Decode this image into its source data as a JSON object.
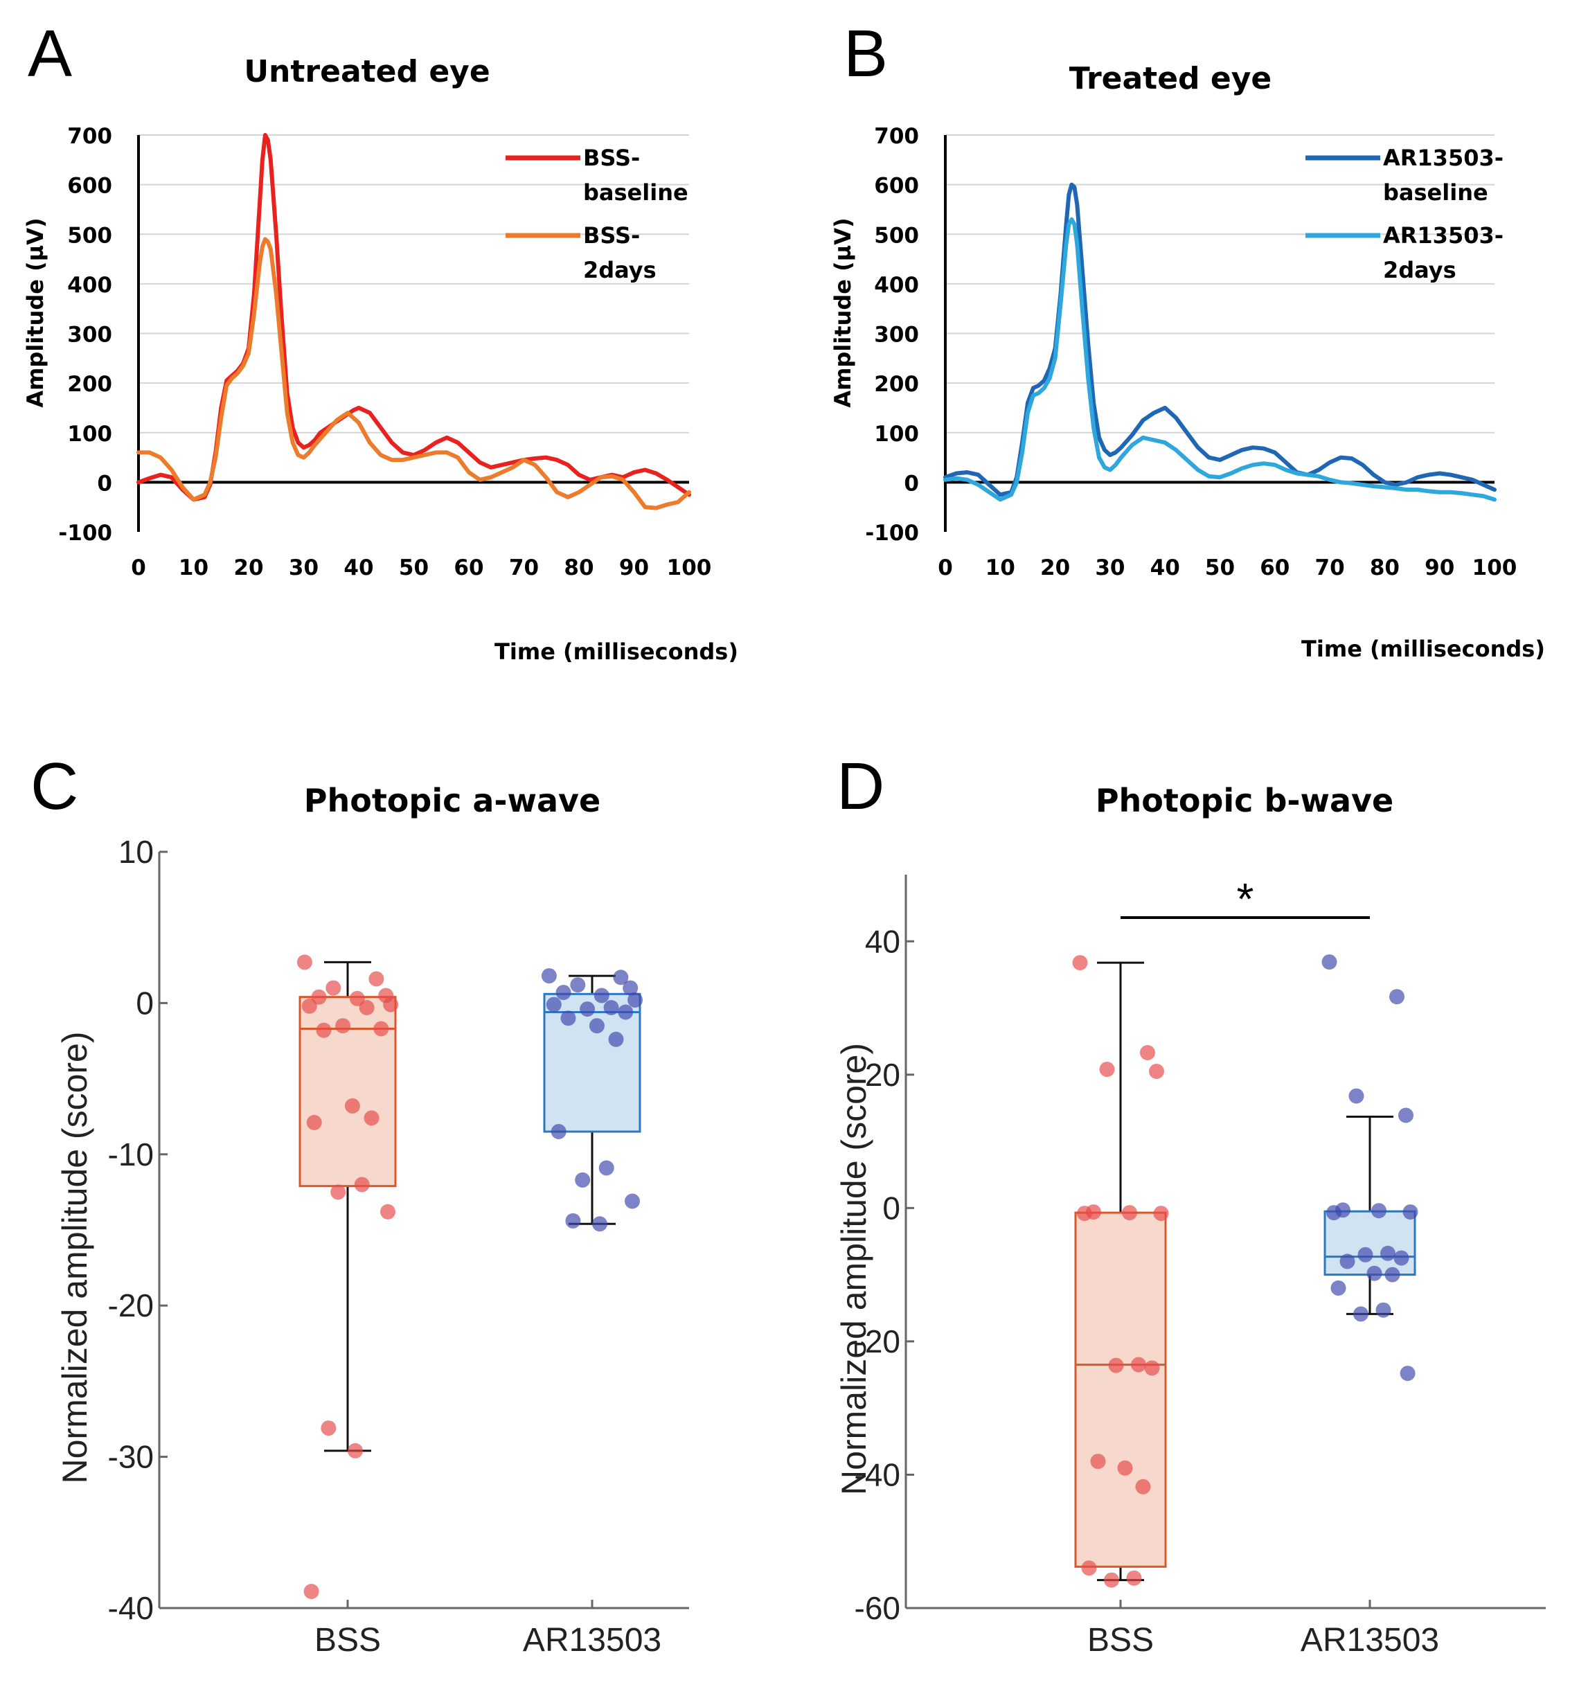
{
  "figure": {
    "panels": [
      {
        "letter": "A"
      },
      {
        "letter": "B"
      },
      {
        "letter": "C"
      },
      {
        "letter": "D"
      }
    ]
  },
  "chart_data": [
    {
      "type": "line",
      "title": "Untreated eye",
      "xlabel": "Time (milliseconds)",
      "ylabel": "Amplitude (µV)",
      "xlim": [
        0,
        100
      ],
      "ylim": [
        -100,
        700
      ],
      "xticks": [
        0,
        10,
        20,
        30,
        40,
        50,
        60,
        70,
        80,
        90,
        100
      ],
      "yticks": [
        -100,
        0,
        100,
        200,
        300,
        400,
        500,
        600,
        700
      ],
      "legend_position": "top-right",
      "series": [
        {
          "name": "BSS-baseline",
          "legend_lines": [
            "BSS-",
            "baseline"
          ],
          "color": "#e8231f",
          "x": [
            0,
            2,
            4,
            6,
            8,
            10,
            12,
            13,
            14,
            15,
            16,
            17,
            18,
            19,
            20,
            21,
            22,
            22.5,
            23,
            23.5,
            24,
            25,
            26,
            27,
            28,
            29,
            30,
            31,
            32,
            33,
            35,
            37,
            39,
            40,
            42,
            44,
            46,
            48,
            50,
            52,
            54,
            56,
            58,
            60,
            62,
            64,
            66,
            68,
            70,
            72,
            74,
            76,
            78,
            80,
            82,
            84,
            86,
            88,
            90,
            92,
            94,
            96,
            98,
            100
          ],
          "y": [
            0,
            8,
            15,
            10,
            -15,
            -35,
            -30,
            -5,
            60,
            150,
            205,
            215,
            225,
            240,
            270,
            380,
            560,
            650,
            700,
            690,
            650,
            500,
            330,
            180,
            110,
            80,
            70,
            75,
            85,
            100,
            115,
            130,
            145,
            150,
            140,
            110,
            80,
            60,
            55,
            65,
            80,
            90,
            80,
            60,
            40,
            30,
            35,
            40,
            45,
            48,
            50,
            45,
            35,
            15,
            5,
            10,
            15,
            10,
            20,
            25,
            18,
            5,
            -10,
            -25
          ]
        },
        {
          "name": "BSS-2days",
          "legend_lines": [
            "BSS-",
            "2days"
          ],
          "color": "#ec7b2c",
          "x": [
            0,
            2,
            4,
            6,
            8,
            10,
            12,
            13,
            14,
            15,
            16,
            17,
            18,
            19,
            20,
            21,
            22,
            22.5,
            23,
            23.5,
            24,
            25,
            26,
            27,
            28,
            29,
            30,
            31,
            32,
            34,
            36,
            38,
            40,
            42,
            44,
            46,
            48,
            50,
            52,
            54,
            56,
            58,
            60,
            62,
            64,
            66,
            68,
            70,
            72,
            74,
            76,
            78,
            80,
            82,
            84,
            86,
            88,
            90,
            92,
            94,
            96,
            98,
            100
          ],
          "y": [
            60,
            60,
            50,
            25,
            -10,
            -35,
            -25,
            0,
            50,
            130,
            195,
            210,
            220,
            235,
            260,
            340,
            440,
            475,
            490,
            485,
            470,
            380,
            260,
            140,
            80,
            55,
            50,
            60,
            75,
            100,
            125,
            140,
            120,
            80,
            55,
            45,
            45,
            50,
            55,
            60,
            60,
            50,
            20,
            5,
            10,
            20,
            30,
            45,
            35,
            10,
            -20,
            -30,
            -20,
            -5,
            10,
            12,
            5,
            -20,
            -50,
            -52,
            -45,
            -40,
            -20
          ]
        }
      ]
    },
    {
      "type": "line",
      "title": "Treated eye",
      "xlabel": "Time (milliseconds)",
      "ylabel": "Amplitude (µV)",
      "xlim": [
        0,
        100
      ],
      "ylim": [
        -100,
        700
      ],
      "xticks": [
        0,
        10,
        20,
        30,
        40,
        50,
        60,
        70,
        80,
        90,
        100
      ],
      "yticks": [
        -100,
        0,
        100,
        200,
        300,
        400,
        500,
        600,
        700
      ],
      "legend_position": "top-right",
      "series": [
        {
          "name": "AR13503-baseline",
          "legend_lines": [
            "AR13503-",
            "baseline"
          ],
          "color": "#1f67b4",
          "x": [
            0,
            2,
            4,
            6,
            8,
            10,
            12,
            13,
            14,
            15,
            16,
            17,
            18,
            19,
            20,
            21,
            22,
            22.5,
            23,
            23.5,
            24,
            25,
            26,
            27,
            28,
            29,
            30,
            31,
            32,
            34,
            36,
            38,
            40,
            42,
            44,
            46,
            48,
            50,
            52,
            54,
            56,
            58,
            60,
            62,
            64,
            66,
            68,
            70,
            72,
            74,
            76,
            78,
            80,
            82,
            84,
            86,
            88,
            90,
            92,
            94,
            96,
            98,
            100
          ],
          "y": [
            10,
            18,
            20,
            15,
            -5,
            -25,
            -20,
            10,
            80,
            160,
            190,
            195,
            205,
            230,
            270,
            380,
            520,
            580,
            600,
            595,
            560,
            420,
            280,
            160,
            90,
            65,
            55,
            60,
            70,
            95,
            125,
            140,
            150,
            130,
            100,
            70,
            50,
            45,
            55,
            65,
            70,
            68,
            60,
            40,
            20,
            15,
            25,
            40,
            50,
            48,
            35,
            15,
            0,
            -5,
            0,
            10,
            15,
            18,
            15,
            10,
            5,
            -5,
            -15
          ]
        },
        {
          "name": "AR13503-2days",
          "legend_lines": [
            "AR13503-",
            "2days"
          ],
          "color": "#2ea7dc",
          "x": [
            0,
            2,
            4,
            6,
            8,
            10,
            12,
            13,
            14,
            15,
            16,
            17,
            18,
            19,
            20,
            21,
            22,
            22.5,
            23,
            23.5,
            24,
            25,
            26,
            27,
            28,
            29,
            30,
            31,
            32,
            34,
            36,
            38,
            40,
            42,
            44,
            46,
            48,
            50,
            52,
            54,
            56,
            58,
            60,
            62,
            64,
            66,
            68,
            70,
            72,
            74,
            76,
            78,
            80,
            82,
            84,
            86,
            88,
            90,
            92,
            94,
            96,
            98,
            100
          ],
          "y": [
            5,
            8,
            5,
            -5,
            -20,
            -35,
            -25,
            0,
            60,
            140,
            175,
            180,
            190,
            210,
            250,
            360,
            480,
            520,
            530,
            520,
            480,
            340,
            210,
            110,
            50,
            30,
            25,
            35,
            50,
            75,
            90,
            85,
            80,
            65,
            45,
            25,
            12,
            10,
            18,
            28,
            35,
            38,
            35,
            25,
            18,
            15,
            12,
            5,
            0,
            -2,
            -5,
            -8,
            -10,
            -12,
            -15,
            -15,
            -18,
            -20,
            -20,
            -22,
            -25,
            -28,
            -35
          ]
        }
      ]
    },
    {
      "type": "box",
      "title": "Photopic a-wave",
      "ylabel": "Normalized amplitude (score)",
      "xlabel": "",
      "ylim": [
        -40,
        10
      ],
      "yticks": [
        10,
        0,
        -10,
        -20,
        -30,
        -40
      ],
      "categories": [
        "BSS",
        "AR13503"
      ],
      "boxes": [
        {
          "name": "BSS",
          "whisker_high": 2.7,
          "q3": 0.4,
          "median": -1.7,
          "q1": -12.1,
          "whisker_low": -29.6,
          "fill": "#f6d8cc",
          "stroke": "#d9582b",
          "points": [
            2.7,
            1.6,
            1.0,
            0.5,
            0.4,
            0.3,
            -0.1,
            -0.2,
            -0.3,
            -1.5,
            -1.7,
            -1.8,
            -6.8,
            -7.6,
            -7.9,
            -12.0,
            -12.5,
            -13.8,
            -28.1,
            -29.6,
            -38.9
          ]
        },
        {
          "name": "AR13503",
          "whisker_high": 1.8,
          "q3": 0.6,
          "median": -0.6,
          "q1": -8.5,
          "whisker_low": -14.6,
          "fill": "#cfe3f3",
          "stroke": "#2c78c0",
          "points": [
            1.8,
            1.7,
            1.2,
            1.0,
            0.7,
            0.5,
            0.2,
            -0.1,
            -0.3,
            -0.4,
            -0.6,
            -1.0,
            -1.5,
            -2.4,
            -8.5,
            -10.9,
            -11.7,
            -13.1,
            -14.4,
            -14.6
          ]
        }
      ],
      "point_colors": [
        "#e84a4a",
        "#3f48ad"
      ]
    },
    {
      "type": "box",
      "title": "Photopic b-wave",
      "ylabel": "Normalized amplitude (score)",
      "xlabel": "",
      "ylim": [
        -60,
        50
      ],
      "yticks": [
        40,
        20,
        0,
        -20,
        -40,
        -60
      ],
      "categories": [
        "BSS",
        "AR13503"
      ],
      "significance": "*",
      "boxes": [
        {
          "name": "BSS",
          "whisker_high": 36.8,
          "q3": -0.7,
          "median": -23.5,
          "q1": -53.8,
          "whisker_low": -55.8,
          "fill": "#f6d8cc",
          "stroke": "#d9582b",
          "points": [
            36.8,
            23.3,
            20.8,
            20.5,
            -0.6,
            -0.7,
            -0.8,
            -0.8,
            -23.5,
            -23.6,
            -24.0,
            -38.0,
            -39.0,
            -41.8,
            -54.0,
            -55.5,
            -55.8
          ]
        },
        {
          "name": "AR13503",
          "whisker_high": 13.7,
          "q3": -0.5,
          "median": -7.3,
          "q1": -10.0,
          "whisker_low": -15.9,
          "fill": "#cfe3f3",
          "stroke": "#2c78c0",
          "points": [
            36.9,
            31.7,
            16.8,
            13.9,
            -0.3,
            -0.4,
            -0.6,
            -0.7,
            -6.8,
            -7.0,
            -7.5,
            -8.0,
            -9.8,
            -10.0,
            -12.0,
            -15.3,
            -15.9,
            -24.8
          ]
        }
      ],
      "point_colors": [
        "#e84a4a",
        "#3f48ad"
      ]
    }
  ]
}
